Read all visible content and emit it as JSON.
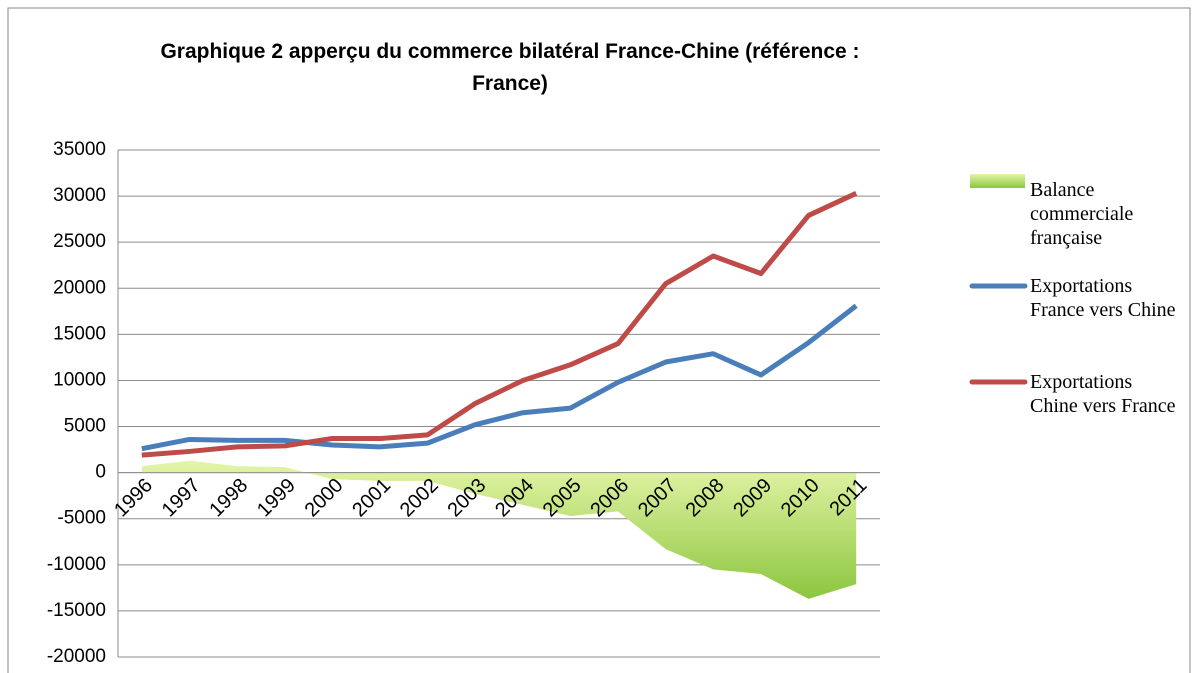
{
  "chart_data": {
    "type": "line",
    "title": "Graphique 2 apperçu du commerce bilatéral France-Chine (référence : France)",
    "categories": [
      "1996",
      "1997",
      "1998",
      "1999",
      "2000",
      "2001",
      "2002",
      "2003",
      "2004",
      "2005",
      "2006",
      "2007",
      "2008",
      "2009",
      "2010",
      "2011"
    ],
    "series": [
      {
        "name": "Balance commerciale française",
        "type": "area",
        "color": "#a9d856",
        "values": [
          700,
          1300,
          700,
          600,
          -700,
          -900,
          -900,
          -2300,
          -3500,
          -4700,
          -4200,
          -8300,
          -10500,
          -11000,
          -13700,
          -12100
        ]
      },
      {
        "name": "Exportations France vers Chine",
        "type": "line",
        "color": "#4a7ebb",
        "values": [
          2600,
          3600,
          3500,
          3500,
          3000,
          2800,
          3200,
          5200,
          6500,
          7000,
          9800,
          12000,
          12900,
          10600,
          14100,
          18100
        ]
      },
      {
        "name": "Exportations Chine vers France",
        "type": "line",
        "color": "#be4b48",
        "values": [
          1900,
          2300,
          2800,
          2900,
          3700,
          3700,
          4100,
          7500,
          10000,
          11700,
          14000,
          20500,
          23500,
          21600,
          27900,
          30300
        ]
      }
    ],
    "ylim": [
      -20000,
      35000
    ],
    "yticks": [
      -20000,
      -15000,
      -10000,
      -5000,
      0,
      5000,
      10000,
      15000,
      20000,
      25000,
      30000,
      35000
    ],
    "grid": true
  }
}
